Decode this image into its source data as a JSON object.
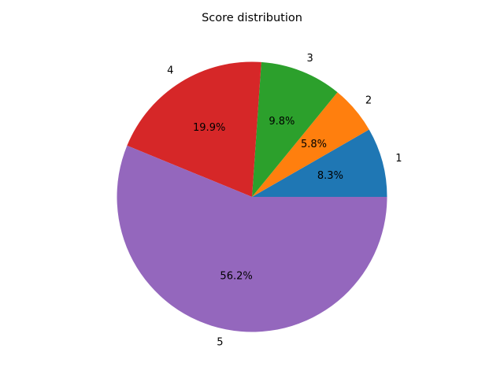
{
  "chart_data": {
    "type": "pie",
    "title": "Score distribution",
    "categories": [
      "1",
      "2",
      "3",
      "4",
      "5"
    ],
    "values": [
      8.3,
      5.8,
      9.8,
      19.9,
      56.2
    ],
    "value_labels": [
      "8.3%",
      "5.8%",
      "9.8%",
      "19.9%",
      "56.2%"
    ],
    "colors": [
      "#1f77b4",
      "#ff7f0e",
      "#2ca02c",
      "#d62728",
      "#9467bd"
    ],
    "start_angle_deg": 0,
    "direction": "counterclockwise"
  }
}
